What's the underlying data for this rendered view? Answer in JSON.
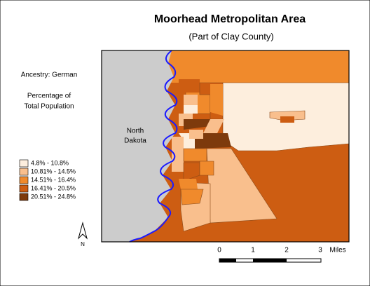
{
  "header": {
    "title": "Moorhead Metropolitan Area",
    "subtitle": "(Part of Clay County)"
  },
  "side_labels": {
    "variable": "Ancestry: German",
    "measure_line1": "Percentage of",
    "measure_line2": "Total Population"
  },
  "map": {
    "neighbor_label_line1": "North",
    "neighbor_label_line2": "Dakota"
  },
  "legend": {
    "items": [
      {
        "label": "4.8% - 10.8%",
        "color": "#fdeedd"
      },
      {
        "label": "10.81% - 14.5%",
        "color": "#f9bf8d"
      },
      {
        "label": "14.51% - 16.4%",
        "color": "#f08a2c"
      },
      {
        "label": "16.41% - 20.5%",
        "color": "#cd5d12"
      },
      {
        "label": "20.51% - 24.8%",
        "color": "#7d3a0c"
      }
    ]
  },
  "north_arrow": {
    "label": "N"
  },
  "scale_bar": {
    "labels": [
      "0",
      "1",
      "2",
      "3"
    ],
    "unit": "Miles"
  }
}
